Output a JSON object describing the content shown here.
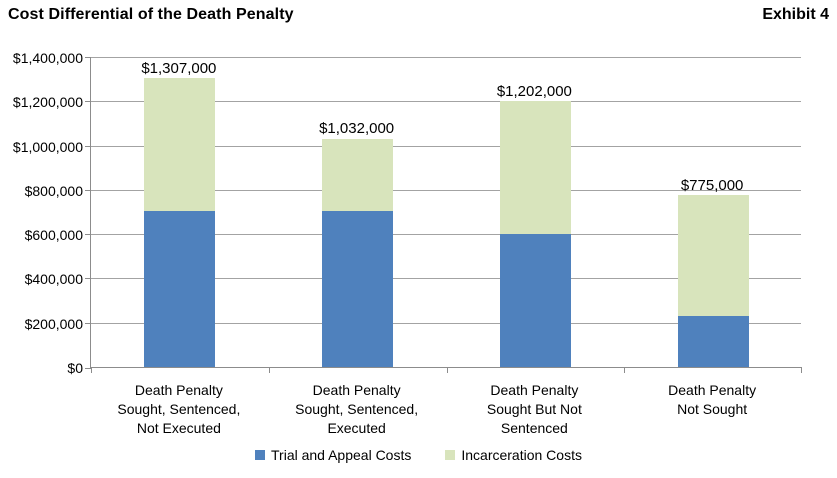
{
  "header": {
    "title": "Cost Differential of the Death Penalty",
    "exhibit": "Exhibit 4"
  },
  "chart_data": {
    "type": "bar",
    "stacked": true,
    "title": "Cost Differential of the Death Penalty",
    "categories": [
      "Death Penalty Sought, Sentenced, Not Executed",
      "Death Penalty Sought, Sentenced, Executed",
      "Death Penalty Sought But Not Sentenced",
      "Death Penalty Not Sought"
    ],
    "category_lines": [
      [
        "Death Penalty",
        "Sought, Sentenced,",
        "Not Executed"
      ],
      [
        "Death Penalty",
        "Sought, Sentenced,",
        "Executed"
      ],
      [
        "Death Penalty",
        "Sought But Not",
        "Sentenced"
      ],
      [
        "Death Penalty",
        "Not Sought"
      ]
    ],
    "series": [
      {
        "name": "Trial and Appeal Costs",
        "color": "#4f81bd",
        "values": [
          705000,
          705000,
          600000,
          230000
        ]
      },
      {
        "name": "Incarceration Costs",
        "color": "#d8e4bc",
        "values": [
          602000,
          327000,
          602000,
          545000
        ]
      }
    ],
    "totals": [
      1307000,
      1032000,
      1202000,
      775000
    ],
    "total_labels": [
      "$1,307,000",
      "$1,032,000",
      "$1,202,000",
      "$775,000"
    ],
    "ylim": [
      0,
      1400000
    ],
    "ytick_step": 200000,
    "ytick_labels": [
      "$0",
      "$200,000",
      "$400,000",
      "$600,000",
      "$800,000",
      "$1,000,000",
      "$1,200,000",
      "$1,400,000"
    ],
    "grid": true,
    "legend_position": "bottom",
    "colors": {
      "trial_and_appeal": "#4f81bd",
      "incarceration": "#d8e4bc",
      "gridline": "#a3a3a3",
      "axis": "#8c8c8c",
      "text": "#000000",
      "background": "#ffffff"
    }
  }
}
